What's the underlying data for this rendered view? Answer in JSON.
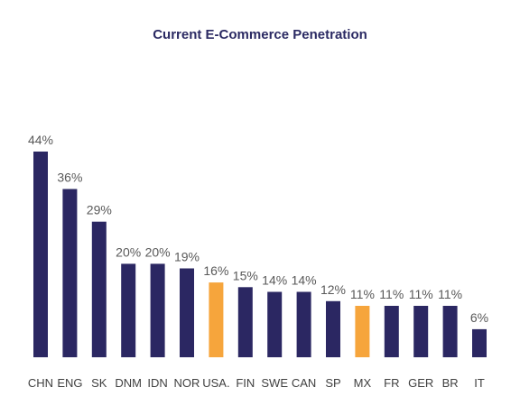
{
  "chart_data": {
    "type": "bar",
    "title": "Current E-Commerce Penetration",
    "xlabel": "",
    "ylabel": "",
    "ylim": [
      0,
      44
    ],
    "grid": false,
    "legend": "none",
    "value_suffix": "%",
    "categories": [
      "CHN",
      "ENG",
      "SK",
      "DNM",
      "IDN",
      "NOR",
      "USA.",
      "FIN",
      "SWE",
      "CAN",
      "SP",
      "MX",
      "FR",
      "GER",
      "BR",
      "IT"
    ],
    "values": [
      44,
      36,
      29,
      20,
      20,
      19,
      16,
      15,
      14,
      14,
      12,
      11,
      11,
      11,
      11,
      6
    ],
    "data_labels": [
      "44%",
      "36%",
      "29%",
      "20%",
      "20%",
      "19%",
      "16%",
      "15%",
      "14%",
      "14%",
      "12%",
      "11%",
      "11%",
      "11%",
      "11%",
      "6%"
    ],
    "highlight_categories": [
      "USA.",
      "MX"
    ],
    "colors": {
      "bar": "#2b2762",
      "highlight": "#f6a53c",
      "title": "#2b2a63",
      "label": "#595959"
    }
  }
}
